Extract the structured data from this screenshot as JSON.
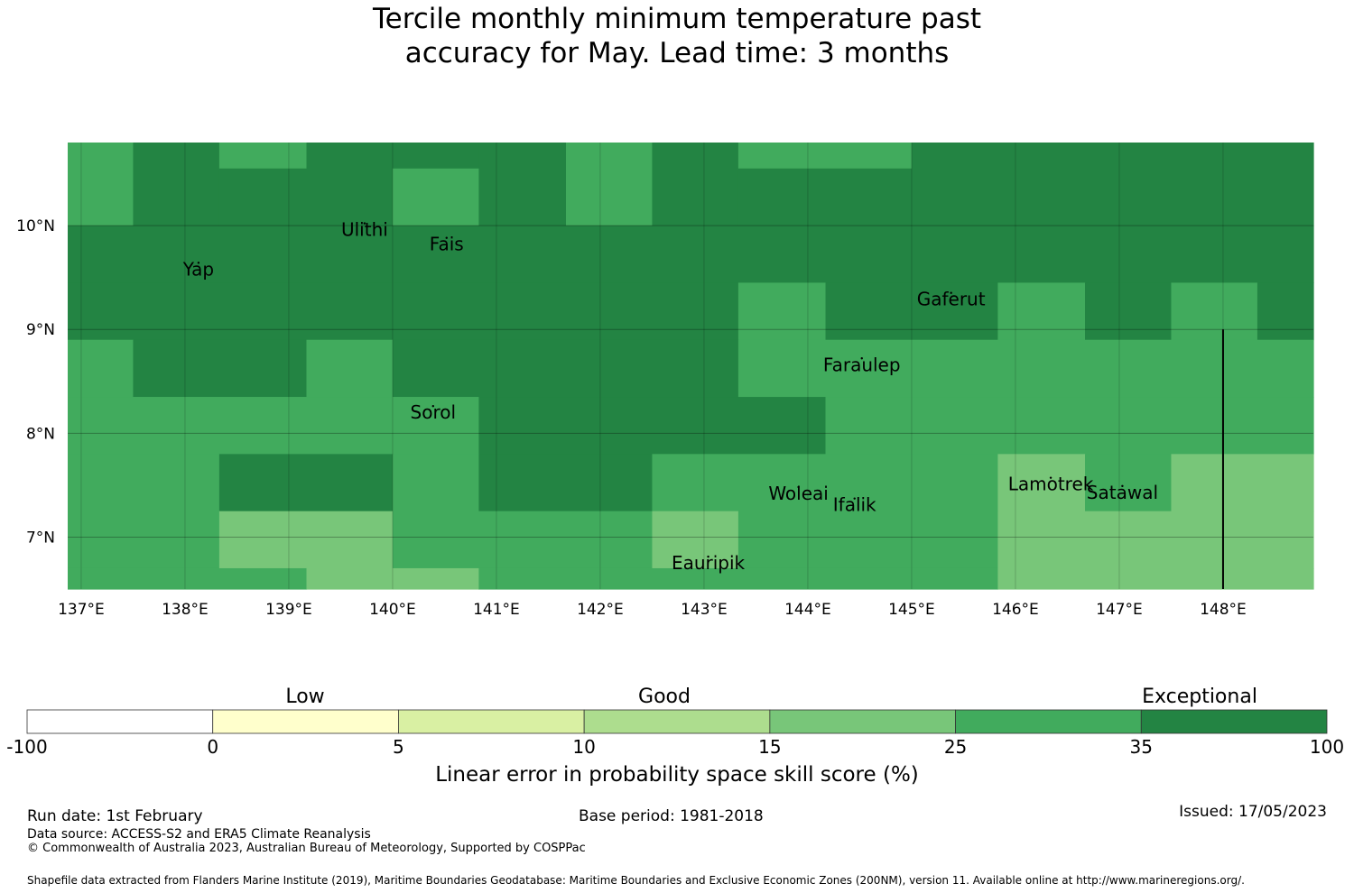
{
  "title_line1": "Tercile monthly minimum temperature past",
  "title_line2": "accuracy for May. Lead time: 3 months",
  "map": {
    "lon_ticks": [
      "137°E",
      "138°E",
      "139°E",
      "140°E",
      "141°E",
      "142°E",
      "143°E",
      "144°E",
      "145°E",
      "146°E",
      "147°E",
      "148°E"
    ],
    "lat_ticks": [
      "10°N",
      "9°N",
      "8°N",
      "7°N"
    ],
    "lon_range": [
      136.87,
      148.87
    ],
    "lat_range": [
      6.5,
      10.8
    ],
    "grid": true,
    "places": [
      {
        "name": "Ulithi",
        "lon": 139.73,
        "lat": 9.9
      },
      {
        "name": "Yap",
        "lon": 138.13,
        "lat": 9.52
      },
      {
        "name": "Fais",
        "lon": 140.52,
        "lat": 9.76
      },
      {
        "name": "Gaferut",
        "lon": 145.38,
        "lat": 9.23
      },
      {
        "name": "Faraulep",
        "lon": 144.52,
        "lat": 8.6
      },
      {
        "name": "Sorol",
        "lon": 140.39,
        "lat": 8.14
      },
      {
        "name": "Woleai",
        "lon": 143.91,
        "lat": 7.36
      },
      {
        "name": "Ifalik",
        "lon": 144.45,
        "lat": 7.25
      },
      {
        "name": "Lamotrek",
        "lon": 146.34,
        "lat": 7.45
      },
      {
        "name": "Satawal",
        "lon": 147.03,
        "lat": 7.37
      },
      {
        "name": "Eauripik",
        "lon": 143.04,
        "lat": 6.69
      }
    ],
    "cells": [
      {
        "lon": [
          136.87,
          137.5
        ],
        "lat": [
          10.0,
          10.8
        ],
        "cls": 6
      },
      {
        "lon": [
          137.5,
          138.33
        ],
        "lat": [
          10.0,
          10.8
        ],
        "cls": 7
      },
      {
        "lon": [
          138.33,
          139.17
        ],
        "lat": [
          10.55,
          10.8
        ],
        "cls": 6
      },
      {
        "lon": [
          138.33,
          139.17
        ],
        "lat": [
          10.0,
          10.55
        ],
        "cls": 7
      },
      {
        "lon": [
          139.17,
          140.0
        ],
        "lat": [
          10.0,
          10.8
        ],
        "cls": 7
      },
      {
        "lon": [
          140.0,
          140.83
        ],
        "lat": [
          10.55,
          10.8
        ],
        "cls": 7
      },
      {
        "lon": [
          140.0,
          140.83
        ],
        "lat": [
          10.0,
          10.55
        ],
        "cls": 6
      },
      {
        "lon": [
          140.83,
          141.67
        ],
        "lat": [
          10.0,
          10.8
        ],
        "cls": 7
      },
      {
        "lon": [
          141.67,
          142.5
        ],
        "lat": [
          10.0,
          10.8
        ],
        "cls": 6
      },
      {
        "lon": [
          142.5,
          143.33
        ],
        "lat": [
          10.0,
          10.8
        ],
        "cls": 7
      },
      {
        "lon": [
          143.33,
          145.0
        ],
        "lat": [
          10.55,
          10.8
        ],
        "cls": 6
      },
      {
        "lon": [
          143.33,
          145.0
        ],
        "lat": [
          10.0,
          10.55
        ],
        "cls": 7
      },
      {
        "lon": [
          145.0,
          148.87
        ],
        "lat": [
          10.0,
          10.8
        ],
        "cls": 7
      },
      {
        "lon": [
          136.87,
          148.87
        ],
        "lat": [
          9.45,
          10.0
        ],
        "cls": 7
      },
      {
        "lon": [
          136.87,
          143.33
        ],
        "lat": [
          8.9,
          9.45
        ],
        "cls": 7
      },
      {
        "lon": [
          143.33,
          144.17
        ],
        "lat": [
          8.9,
          9.45
        ],
        "cls": 6
      },
      {
        "lon": [
          144.17,
          145.83
        ],
        "lat": [
          8.9,
          9.45
        ],
        "cls": 7
      },
      {
        "lon": [
          145.83,
          146.67
        ],
        "lat": [
          8.9,
          9.45
        ],
        "cls": 6
      },
      {
        "lon": [
          146.67,
          147.5
        ],
        "lat": [
          8.9,
          9.45
        ],
        "cls": 7
      },
      {
        "lon": [
          147.5,
          148.33
        ],
        "lat": [
          8.9,
          9.45
        ],
        "cls": 6
      },
      {
        "lon": [
          148.33,
          148.87
        ],
        "lat": [
          8.9,
          9.45
        ],
        "cls": 7
      },
      {
        "lon": [
          136.87,
          137.5
        ],
        "lat": [
          8.35,
          8.9
        ],
        "cls": 6
      },
      {
        "lon": [
          137.5,
          139.17
        ],
        "lat": [
          8.35,
          8.9
        ],
        "cls": 7
      },
      {
        "lon": [
          139.17,
          140.0
        ],
        "lat": [
          8.35,
          8.9
        ],
        "cls": 6
      },
      {
        "lon": [
          140.0,
          143.33
        ],
        "lat": [
          8.35,
          8.9
        ],
        "cls": 7
      },
      {
        "lon": [
          143.33,
          148.87
        ],
        "lat": [
          8.35,
          8.9
        ],
        "cls": 6
      },
      {
        "lon": [
          136.87,
          140.0
        ],
        "lat": [
          7.8,
          8.35
        ],
        "cls": 6
      },
      {
        "lon": [
          140.0,
          140.83
        ],
        "lat": [
          7.8,
          8.35
        ],
        "cls": 6
      },
      {
        "lon": [
          140.83,
          144.17
        ],
        "lat": [
          7.8,
          8.35
        ],
        "cls": 7
      },
      {
        "lon": [
          144.17,
          148.87
        ],
        "lat": [
          7.8,
          8.35
        ],
        "cls": 6
      },
      {
        "lon": [
          136.87,
          138.33
        ],
        "lat": [
          7.25,
          7.8
        ],
        "cls": 6
      },
      {
        "lon": [
          138.33,
          140.0
        ],
        "lat": [
          7.25,
          7.8
        ],
        "cls": 7
      },
      {
        "lon": [
          140.0,
          140.83
        ],
        "lat": [
          7.25,
          7.8
        ],
        "cls": 6
      },
      {
        "lon": [
          140.83,
          142.5
        ],
        "lat": [
          7.25,
          7.8
        ],
        "cls": 7
      },
      {
        "lon": [
          142.5,
          145.83
        ],
        "lat": [
          7.25,
          7.8
        ],
        "cls": 6
      },
      {
        "lon": [
          145.83,
          146.67
        ],
        "lat": [
          7.25,
          7.8
        ],
        "cls": 5
      },
      {
        "lon": [
          146.67,
          147.5
        ],
        "lat": [
          7.25,
          7.8
        ],
        "cls": 6
      },
      {
        "lon": [
          147.5,
          148.87
        ],
        "lat": [
          7.25,
          7.8
        ],
        "cls": 5
      },
      {
        "lon": [
          136.87,
          138.33
        ],
        "lat": [
          6.7,
          7.25
        ],
        "cls": 6
      },
      {
        "lon": [
          138.33,
          140.0
        ],
        "lat": [
          6.7,
          7.25
        ],
        "cls": 5
      },
      {
        "lon": [
          140.0,
          142.5
        ],
        "lat": [
          6.7,
          7.25
        ],
        "cls": 6
      },
      {
        "lon": [
          142.5,
          143.33
        ],
        "lat": [
          6.7,
          7.25
        ],
        "cls": 5
      },
      {
        "lon": [
          143.33,
          145.83
        ],
        "lat": [
          6.7,
          7.25
        ],
        "cls": 6
      },
      {
        "lon": [
          145.83,
          148.87
        ],
        "lat": [
          6.7,
          7.25
        ],
        "cls": 5
      },
      {
        "lon": [
          136.87,
          139.17
        ],
        "lat": [
          6.5,
          6.7
        ],
        "cls": 6
      },
      {
        "lon": [
          139.17,
          140.0
        ],
        "lat": [
          6.5,
          6.7
        ],
        "cls": 5
      },
      {
        "lon": [
          140.0,
          140.83
        ],
        "lat": [
          6.5,
          6.7
        ],
        "cls": 5
      },
      {
        "lon": [
          140.83,
          145.83
        ],
        "lat": [
          6.5,
          6.7
        ],
        "cls": 6
      },
      {
        "lon": [
          145.83,
          148.87
        ],
        "lat": [
          6.5,
          6.7
        ],
        "cls": 5
      }
    ],
    "boundary_line": {
      "lon": 148.0,
      "lat": [
        6.5,
        9.0
      ]
    }
  },
  "colorbar": {
    "categories": [
      "Low",
      "Good",
      "Exceptional"
    ],
    "ticks": [
      "-100",
      "0",
      "5",
      "10",
      "15",
      "25",
      "35",
      "100"
    ],
    "colors": [
      "#ffffff",
      "#ffffcc",
      "#d9f0a3",
      "#addd8e",
      "#78c679",
      "#41ab5d",
      "#238443"
    ],
    "label": "Linear error in probability space skill score (%)"
  },
  "footer": {
    "run_date": "Run date: 1st February",
    "base_period": "Base period: 1981-2018",
    "issued": "Issued: 17/05/2023",
    "data_source": "Data source: ACCESS-S2 and ERA5 Climate Reanalysis",
    "copyright": "© Commonwealth of Australia 2023, Australian Bureau of Meteorology, Supported by COSPPac",
    "shapefile": "Shapefile data extracted from Flanders Marine Institute (2019), Maritime Boundaries Geodatabase: Maritime Boundaries and Exclusive Economic Zones (200NM), version 11. Available online at http://www.marineregions.org/."
  }
}
